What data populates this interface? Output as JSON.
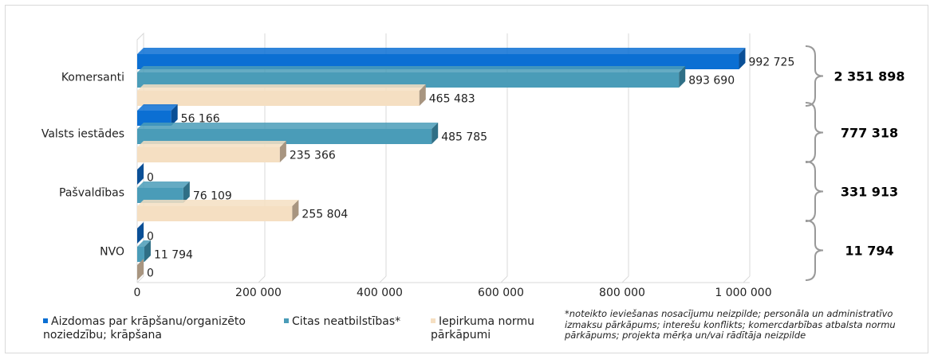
{
  "chart_data": {
    "type": "bar",
    "orientation": "horizontal",
    "categories": [
      "Komersanti",
      "Valsts iestādes",
      "Pašvaldības",
      "NVO"
    ],
    "series": [
      {
        "name": "Aizdomas par krāpšanu/organizēto noziedzību; krāpšana",
        "values": [
          992725,
          56166,
          0,
          0
        ],
        "labels": [
          "992 725",
          "56 166",
          "0",
          "0"
        ],
        "color": "#0b6fd3",
        "shade": "#0a4f96"
      },
      {
        "name": "Citas neatbilstības*",
        "values": [
          893690,
          485785,
          76109,
          11794
        ],
        "labels": [
          "893 690",
          "485 785",
          "76 109",
          "11 794"
        ],
        "color": "#4a9cb8",
        "shade": "#2f6f86"
      },
      {
        "name": "Iepirkuma normu pārkāpumi",
        "values": [
          465483,
          235366,
          255804,
          0
        ],
        "labels": [
          "465 483",
          "235 366",
          "255 804",
          "0"
        ],
        "color": "#f5dfc2",
        "shade": "#a89580"
      }
    ],
    "totals": [
      "2 351 898",
      "777 318",
      "331 913",
      "11 794"
    ],
    "xlim": [
      0,
      1000000
    ],
    "xticks": [
      0,
      200000,
      400000,
      600000,
      800000,
      1000000
    ],
    "xtick_labels": [
      "0",
      "200 000",
      "400 000",
      "600 000",
      "800 000",
      "1 000 000"
    ],
    "grid": true,
    "legend_position": "bottom",
    "footnote": "*noteikto ieviešanas nosacījumu neizpilde; personāla un administratīvo izmaksu pārkāpums; interešu konflikts; komercdarbības atbalsta normu pārkāpums; projekta mērķa un/vai rādītāja neizpilde"
  }
}
